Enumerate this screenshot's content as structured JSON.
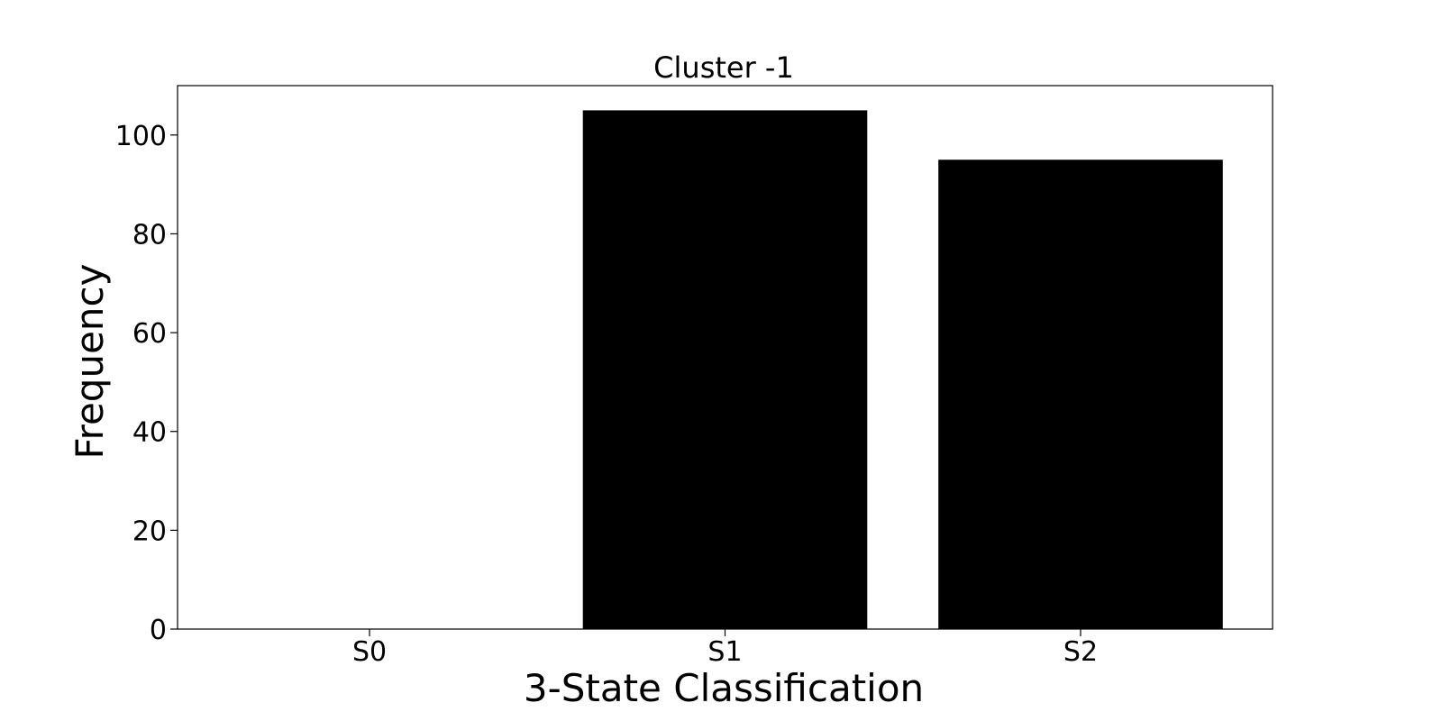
{
  "chart_data": {
    "type": "bar",
    "title": "Cluster -1",
    "xlabel": "3-State Classification",
    "ylabel": "Frequency",
    "categories": [
      "S0",
      "S1",
      "S2"
    ],
    "values": [
      0,
      105,
      95
    ],
    "ylim": [
      0,
      110
    ],
    "yticks": [
      0,
      20,
      40,
      60,
      80,
      100
    ],
    "bar_color": "#000000",
    "grid": false,
    "legend": "none"
  }
}
